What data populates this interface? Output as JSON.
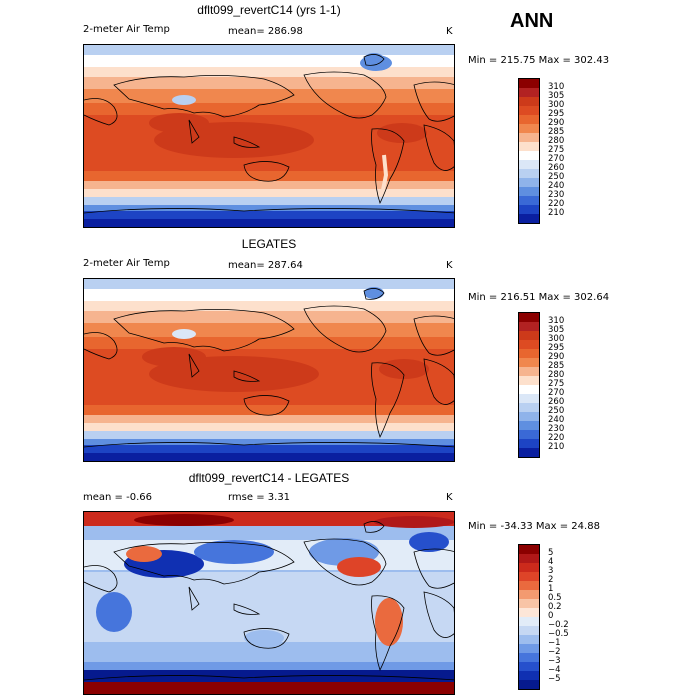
{
  "season": "ANN",
  "panels": [
    {
      "title": "dflt099_revertC14 (yrs 1-1)",
      "variable": "2-meter Air Temp",
      "stat": "mean=  286.98",
      "unit": "K",
      "minmax": "Min = 215.75  Max = 302.43",
      "colorbar": {
        "labels": [
          "310",
          "305",
          "300",
          "295",
          "290",
          "285",
          "280",
          "275",
          "270",
          "260",
          "250",
          "240",
          "230",
          "220",
          "210"
        ],
        "colors": [
          "#8b0000",
          "#b22222",
          "#cd3a1a",
          "#dd4b22",
          "#e8662f",
          "#f0874e",
          "#f6b48f",
          "#fde0cc",
          "#ffffff",
          "#dbe7f7",
          "#b9d0f1",
          "#8fb3ea",
          "#5f8fe0",
          "#3a69d6",
          "#1d44c4",
          "#0a1fa0"
        ]
      }
    },
    {
      "title": "LEGATES",
      "variable": "2-meter Air Temp",
      "stat": "mean=  287.64",
      "unit": "K",
      "minmax": "Min = 216.51  Max = 302.64",
      "colorbar": {
        "labels": [
          "310",
          "305",
          "300",
          "295",
          "290",
          "285",
          "280",
          "275",
          "270",
          "260",
          "250",
          "240",
          "230",
          "220",
          "210"
        ],
        "colors": [
          "#8b0000",
          "#b22222",
          "#cd3a1a",
          "#dd4b22",
          "#e8662f",
          "#f0874e",
          "#f6b48f",
          "#fde0cc",
          "#ffffff",
          "#dbe7f7",
          "#b9d0f1",
          "#8fb3ea",
          "#5f8fe0",
          "#3a69d6",
          "#1d44c4",
          "#0a1fa0"
        ]
      }
    },
    {
      "title": "dflt099_revertC14 - LEGATES",
      "stat": "mean =   -0.66",
      "rmse": "rmse =    3.31",
      "unit": "K",
      "minmax": "Min = -34.33  Max =   24.88",
      "colorbar": {
        "labels": [
          "5",
          "4",
          "3",
          "2",
          "1",
          "0.5",
          "0.2",
          "0",
          "−0.2",
          "−0.5",
          "−1",
          "−2",
          "−3",
          "−4",
          "−5"
        ],
        "colors": [
          "#8b0000",
          "#b01818",
          "#cc2a1c",
          "#de4428",
          "#ea6a3e",
          "#f39a70",
          "#f8c4a6",
          "#fde6d8",
          "#e2ecf8",
          "#c6d8f3",
          "#9dbdee",
          "#6f9ae6",
          "#4675dc",
          "#2650cc",
          "#1030b2",
          "#061a8e"
        ]
      }
    }
  ]
}
